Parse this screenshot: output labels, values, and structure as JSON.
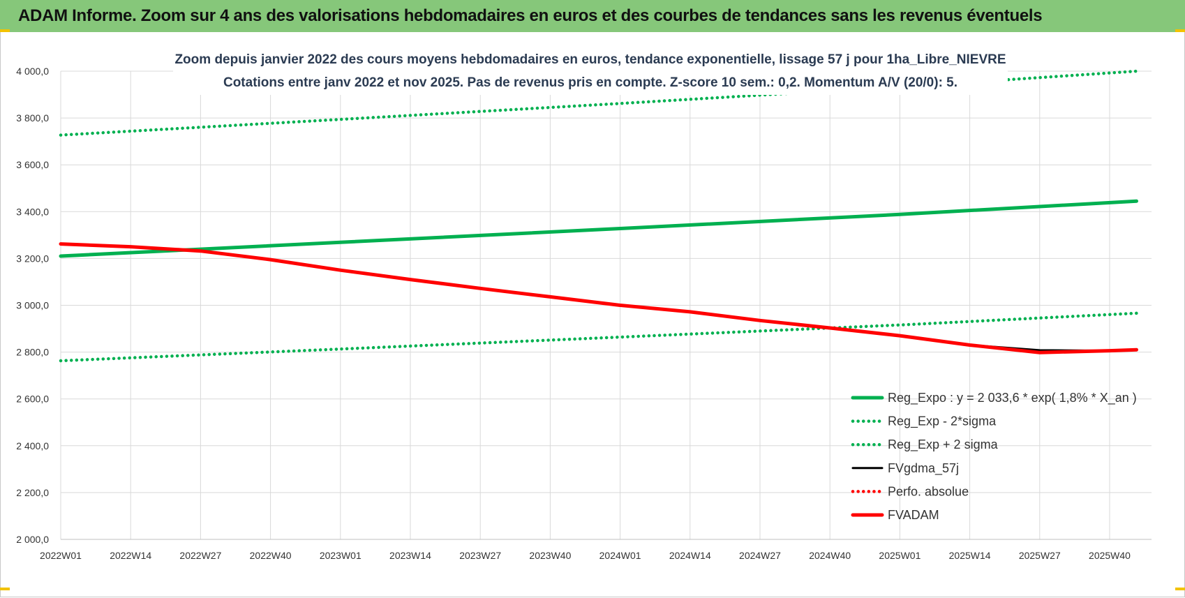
{
  "banner": {
    "title": "ADAM Informe. Zoom sur 4 ans des valorisations hebdomadaires en euros et des courbes de tendances sans les revenus éventuels"
  },
  "colors": {
    "banner_bg": "#86c77a",
    "reg_expo": "#00b050",
    "fvgdma": "#000000",
    "fvadam": "#ff0000",
    "grid": "#d9d9d9"
  },
  "chart_data": {
    "type": "line",
    "title": [
      "Zoom depuis janvier 2022 des cours moyens hebdomadaires en euros, tendance exponentielle, lissage 57 j pour 1ha_Libre_NIEVRE",
      "Cotations entre janv 2022 et nov 2025. Pas de revenus pris en compte. Z-score 10 sem.: 0,2. Momentum A/V (20/0): 5."
    ],
    "xlabel": "",
    "ylabel": "",
    "x_tick_labels": [
      "2022W01",
      "2022W14",
      "2022W27",
      "2022W40",
      "2023W01",
      "2023W14",
      "2023W27",
      "2023W40",
      "2024W01",
      "2024W14",
      "2024W27",
      "2024W40",
      "2025W01",
      "2025W14",
      "2025W27",
      "2025W40"
    ],
    "y_tick_labels": [
      "2 000,0",
      "2 200,0",
      "2 400,0",
      "2 600,0",
      "2 800,0",
      "3 000,0",
      "3 200,0",
      "3 400,0",
      "3 600,0",
      "3 800,0",
      "4 000,0"
    ],
    "ylim": [
      2000,
      4000
    ],
    "x_unit": "week index from 2022W01 (tick every 13 weeks)",
    "x_range": [
      0,
      200
    ],
    "grid": true,
    "legend_position": "bottom-right",
    "series": [
      {
        "name": "Reg_Expo : y = 2 033,6 * exp( 1,8% *  X_an )",
        "style": "solid-thick",
        "color": "#00b050",
        "x": [
          0,
          52,
          104,
          156,
          200
        ],
        "values": [
          3210,
          3269,
          3328,
          3388,
          3445
        ]
      },
      {
        "name": "Reg_Exp - 2*sigma",
        "style": "dotted",
        "color": "#00b050",
        "x": [
          0,
          52,
          104,
          156,
          200
        ],
        "values": [
          2763,
          2813,
          2864,
          2916,
          2966
        ]
      },
      {
        "name": "Reg_Exp + 2 sigma",
        "style": "dotted",
        "color": "#00b050",
        "x": [
          0,
          52,
          104,
          156,
          200
        ],
        "values": [
          3727,
          3794,
          3862,
          3933,
          4000
        ]
      },
      {
        "name": "FVgdma_57j",
        "style": "solid-thin",
        "color": "#000000",
        "x": [
          0,
          13,
          26,
          39,
          52,
          65,
          78,
          91,
          104,
          117,
          130,
          143,
          156,
          169,
          182,
          195,
          200
        ],
        "values": [
          3262,
          3250,
          3232,
          3195,
          3150,
          3110,
          3072,
          3036,
          3000,
          2972,
          2935,
          2903,
          2870,
          2830,
          2808,
          2806,
          2810
        ]
      },
      {
        "name": "Perfo. absolue",
        "style": "dotted",
        "color": "#ff0000",
        "x": [],
        "values": []
      },
      {
        "name": "FVADAM",
        "style": "solid-thick",
        "color": "#ff0000",
        "x": [
          0,
          13,
          26,
          39,
          52,
          65,
          78,
          91,
          104,
          117,
          130,
          143,
          156,
          169,
          182,
          185,
          195,
          200
        ],
        "values": [
          3262,
          3250,
          3232,
          3195,
          3150,
          3110,
          3072,
          3036,
          3000,
          2972,
          2935,
          2903,
          2870,
          2830,
          2798,
          2800,
          2806,
          2810
        ]
      }
    ]
  }
}
